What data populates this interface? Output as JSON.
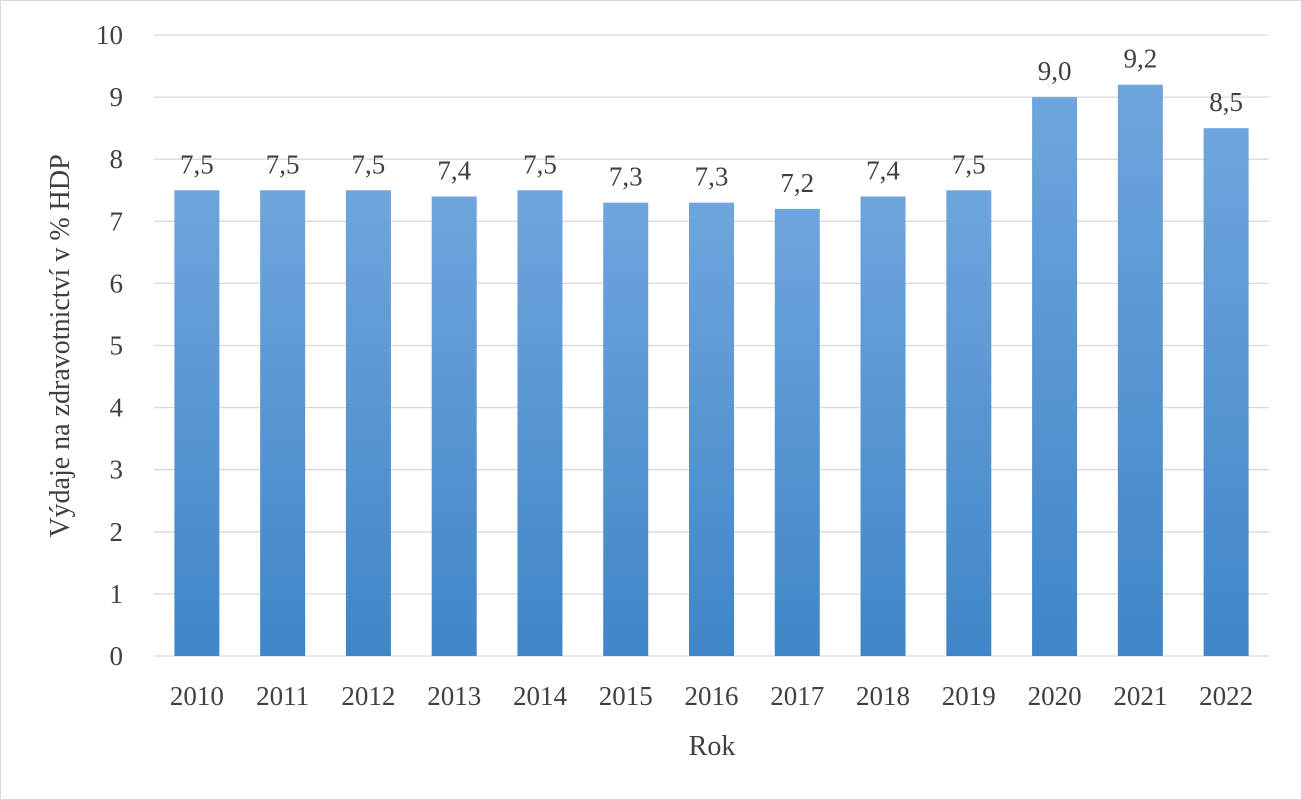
{
  "chart_data": {
    "type": "bar",
    "title": "",
    "xlabel": "Rok",
    "ylabel": "Výdaje na zdravotnictví v % HDP",
    "ylim": [
      0,
      10
    ],
    "yticks": [
      "0",
      "1",
      "2",
      "3",
      "4",
      "5",
      "6",
      "7",
      "8",
      "9",
      "10"
    ],
    "grid": true,
    "categories": [
      "2010",
      "2011",
      "2012",
      "2013",
      "2014",
      "2015",
      "2016",
      "2017",
      "2018",
      "2019",
      "2020",
      "2021",
      "2022"
    ],
    "values": [
      7.5,
      7.5,
      7.5,
      7.4,
      7.5,
      7.3,
      7.3,
      7.2,
      7.4,
      7.5,
      9.0,
      9.2,
      8.5
    ],
    "data_labels": [
      "7,5",
      "7,5",
      "7,5",
      "7,4",
      "7,5",
      "7,3",
      "7,3",
      "7,2",
      "7,4",
      "7,5",
      "9,0",
      "9,2",
      "8,5"
    ],
    "colors": {
      "bar_top": "#6fa5dc",
      "bar_bottom": "#3f86c8",
      "grid": "#d9d9d9",
      "text": "#404040"
    }
  }
}
